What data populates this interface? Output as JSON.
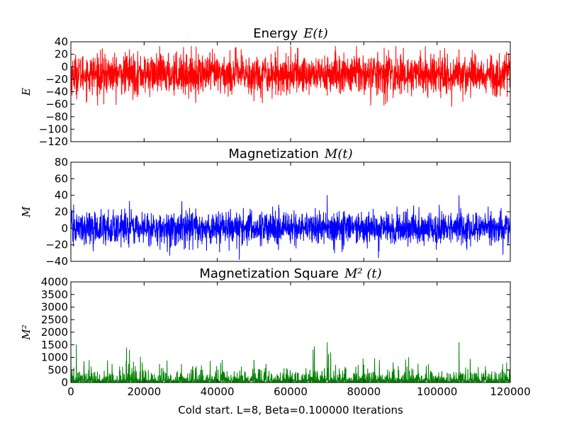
{
  "chart_data": [
    {
      "type": "line",
      "title_text": "Energy",
      "title_math": "E(t)",
      "ylabel": "E",
      "color": "#ff0000",
      "ylim": [
        -120,
        40
      ],
      "yticks": [
        40,
        20,
        0,
        -20,
        -40,
        -60,
        -80,
        -100,
        -120
      ],
      "ytick_labels": [
        "40",
        "20",
        "0",
        "−20",
        "−40",
        "−60",
        "−80",
        "−100",
        "−120"
      ],
      "xlim": [
        0,
        120000
      ],
      "series": [
        {
          "sampled": true,
          "mean": -12,
          "spread": 16,
          "min": -62,
          "max": 33,
          "samples_x": [
            0,
            9000,
            16000,
            30000,
            50000,
            62000,
            78000,
            88000,
            104000,
            106000,
            120000
          ],
          "samples_y": [
            -20,
            -60,
            28,
            20,
            -55,
            30,
            33,
            -50,
            -64,
            28,
            -35
          ]
        }
      ]
    },
    {
      "type": "line",
      "title_text": "Magnetization",
      "title_math": "M(t)",
      "ylabel": "M",
      "color": "#0000ff",
      "ylim": [
        -40,
        80
      ],
      "yticks": [
        80,
        60,
        40,
        20,
        0,
        -20,
        -40
      ],
      "ytick_labels": [
        "80",
        "60",
        "40",
        "20",
        "0",
        "−20",
        "−40"
      ],
      "xlim": [
        0,
        120000
      ],
      "series": [
        {
          "sampled": true,
          "mean": 0,
          "spread": 10,
          "min": -38,
          "max": 40,
          "samples_x": [
            0,
            16000,
            27000,
            46000,
            70000,
            72000,
            84000,
            106000,
            118000
          ],
          "samples_y": [
            35,
            33,
            -33,
            -38,
            40,
            -30,
            -36,
            40,
            -32
          ]
        }
      ]
    },
    {
      "type": "line",
      "title_text": "Magnetization Square",
      "title_math": "M² (t)",
      "ylabel": "M²",
      "color": "#008000",
      "ylim": [
        0,
        4000
      ],
      "yticks": [
        4000,
        3500,
        3000,
        2500,
        2000,
        1500,
        1000,
        500,
        0
      ],
      "ytick_labels": [
        "4000",
        "3500",
        "3000",
        "2500",
        "2000",
        "1500",
        "1000",
        "500",
        "0"
      ],
      "xlim": [
        0,
        120000
      ],
      "xticks": [
        0,
        20000,
        40000,
        60000,
        80000,
        100000,
        120000
      ],
      "xtick_labels": [
        "0",
        "20000",
        "40000",
        "60000",
        "80000",
        "100000",
        "120000"
      ],
      "xlabel": "Cold start. L=8, Beta=0.100000 Iterations",
      "series": [
        {
          "sampled": true,
          "mean": 120,
          "min": 0,
          "max": 1600,
          "samples_x": [
            0,
            16000,
            50000,
            70000,
            88000,
            106000,
            119000
          ],
          "samples_y": [
            1300,
            1300,
            900,
            1600,
            800,
            1600,
            800
          ]
        }
      ]
    }
  ]
}
